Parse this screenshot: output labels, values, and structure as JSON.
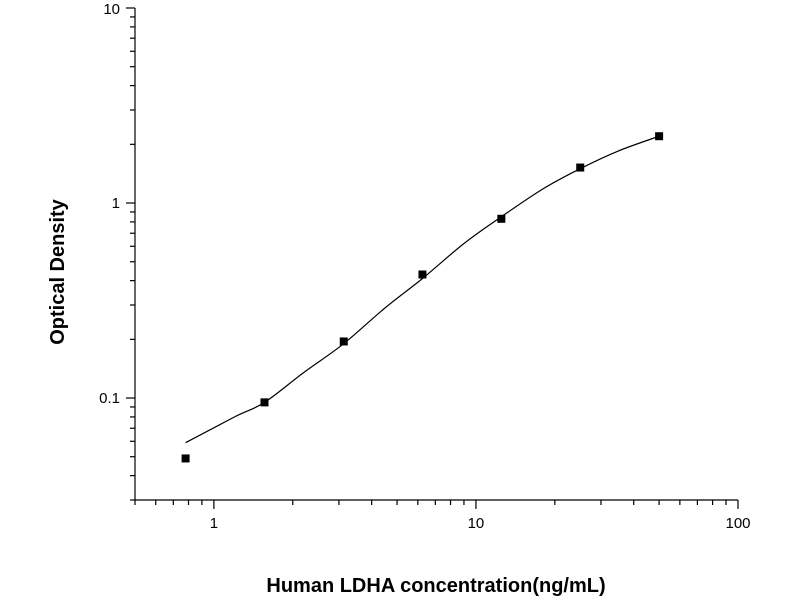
{
  "chart_data": {
    "type": "scatter",
    "title": "",
    "xlabel": "Human LDHA concentration(ng/mL)",
    "ylabel": "Optical Density",
    "x_scale": "log",
    "y_scale": "log",
    "xlim": [
      0.5,
      100
    ],
    "ylim": [
      0.03,
      10
    ],
    "x_ticks": [
      1,
      10,
      100
    ],
    "x_tick_labels": [
      "1",
      "10",
      "100"
    ],
    "y_ticks": [
      0.1,
      1,
      10
    ],
    "y_tick_labels": [
      "0.1",
      "1",
      "10"
    ],
    "grid": false,
    "legend": "none",
    "series": [
      {
        "marker": "square",
        "color": "#000000",
        "x": [
          0.78,
          1.56,
          3.13,
          6.25,
          12.5,
          25,
          50
        ],
        "y": [
          0.049,
          0.095,
          0.195,
          0.43,
          0.83,
          1.52,
          2.2
        ]
      }
    ],
    "fit_curve": {
      "color": "#000000",
      "x": [
        0.78,
        1.2,
        1.56,
        2.2,
        3.13,
        4.5,
        6.25,
        9.0,
        12.5,
        18.0,
        25,
        35,
        50
      ],
      "y": [
        0.059,
        0.08,
        0.095,
        0.135,
        0.19,
        0.29,
        0.41,
        0.62,
        0.85,
        1.18,
        1.5,
        1.85,
        2.2
      ]
    }
  }
}
